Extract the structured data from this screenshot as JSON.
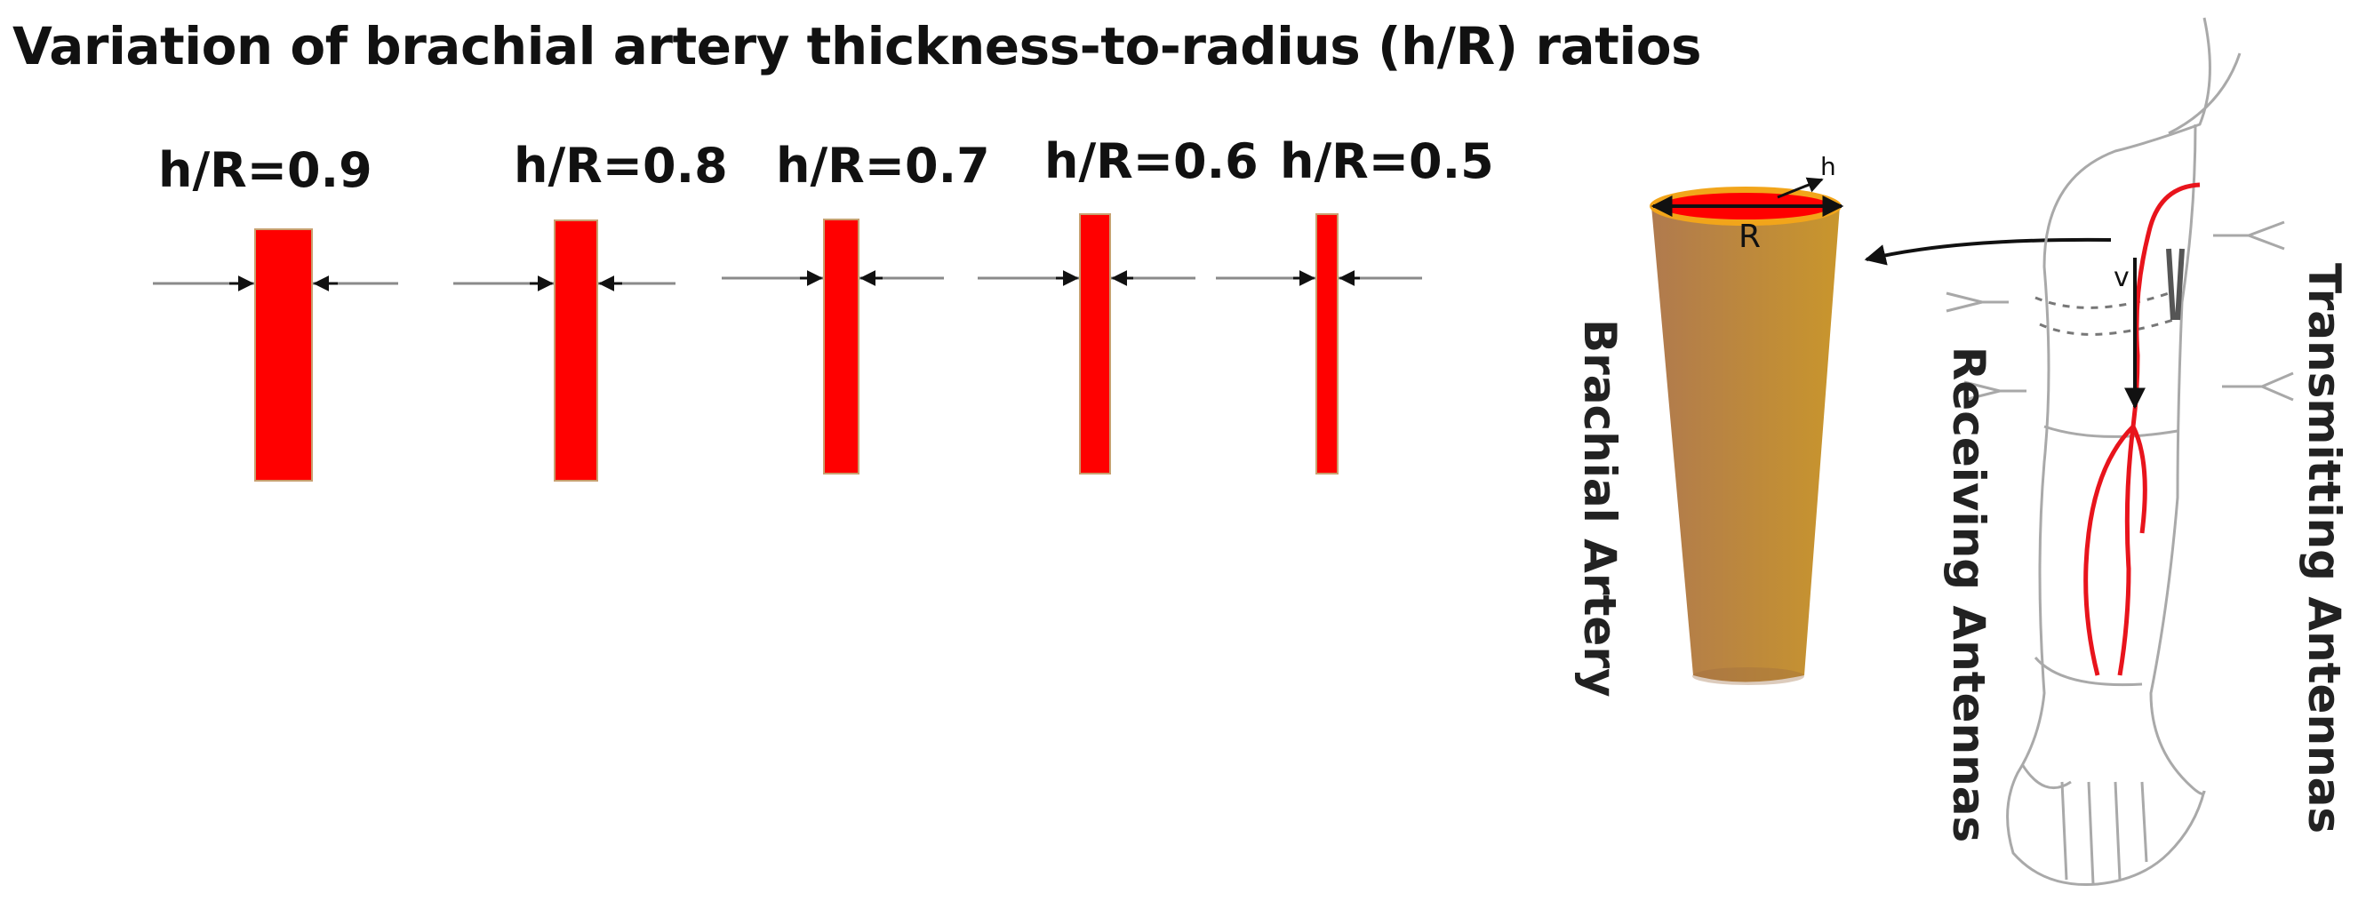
{
  "title": "Variation of brachial artery thickness-to-radius (h/R) ratios",
  "ratios": [
    {
      "label": "h/R=0.9",
      "value": 0.9
    },
    {
      "label": "h/R=0.8",
      "value": 0.8
    },
    {
      "label": "h/R=0.7",
      "value": 0.7
    },
    {
      "label": "h/R=0.6",
      "value": 0.6
    },
    {
      "label": "h/R=0.5",
      "value": 0.5
    }
  ],
  "artery": {
    "h_label": "h",
    "r_label": "R",
    "v_label": "v",
    "name": "Brachial Artery"
  },
  "labels": {
    "receiving": "Receiving Antennas",
    "transmitting": "Transmitting Antennas"
  },
  "colors": {
    "artery_wall": "#ff0000",
    "artery_body_left": "#b07a4e",
    "artery_body_right": "#c9962c",
    "rim": "#f2a51a"
  }
}
